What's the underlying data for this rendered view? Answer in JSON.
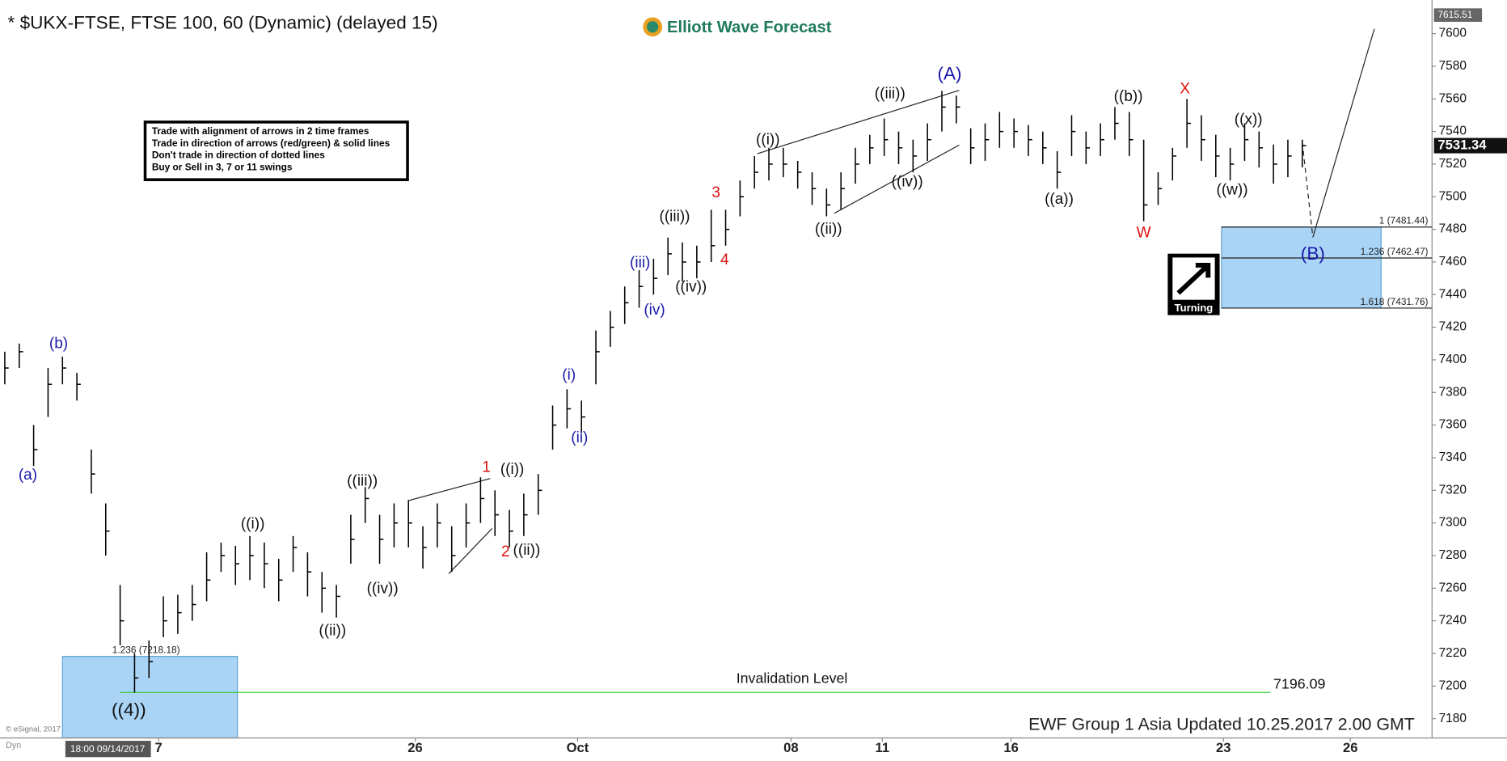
{
  "chart_data": {
    "type": "ohlc",
    "title": "* $UKX-FTSE, FTSE 100, 60 (Dynamic) (delayed 15)",
    "brand": "Elliott Wave Forecast",
    "rules_box": [
      "Trade with alignment of arrows in 2 time frames",
      "Trade in direction of arrows (red/green) & solid lines",
      "Don't trade in direction of dotted lines",
      "Buy or Sell in 3, 7 or 11 swings"
    ],
    "footer": "EWF Group 1 Asia Updated 10.25.2017 2.00 GMT",
    "copyright": "© eSignal, 2017",
    "mode_label": "Dyn",
    "time_label": "18:00 09/14/2017",
    "badge": "Turning",
    "color": "#000000",
    "xlim": [
      0,
      1490
    ],
    "ylim": [
      7168.2,
      7615.51
    ],
    "yticks": [
      7180,
      7200,
      7220,
      7240,
      7260,
      7280,
      7300,
      7320,
      7340,
      7360,
      7380,
      7400,
      7420,
      7440,
      7460,
      7480,
      7500,
      7520,
      7540,
      7560,
      7580,
      7600
    ],
    "xticks": [
      {
        "value": 165,
        "label": "7"
      },
      {
        "value": 432,
        "label": "26"
      },
      {
        "value": 601,
        "label": "Oct"
      },
      {
        "value": 823,
        "label": "08"
      },
      {
        "value": 918,
        "label": "11"
      },
      {
        "value": 1052,
        "label": "16"
      },
      {
        "value": 1273,
        "label": "23"
      },
      {
        "value": 1405,
        "label": "26"
      }
    ],
    "x": [
      5,
      20,
      35,
      50,
      65,
      80,
      95,
      110,
      125,
      140,
      155,
      170,
      185,
      200,
      215,
      230,
      245,
      260,
      275,
      290,
      305,
      320,
      335,
      350,
      365,
      380,
      395,
      410,
      425,
      440,
      455,
      470,
      485,
      500,
      515,
      530,
      545,
      560,
      575,
      590,
      605,
      620,
      635,
      650,
      665,
      680,
      695,
      710,
      725,
      740,
      755,
      770,
      785,
      800,
      815,
      830,
      845,
      860,
      875,
      890,
      905,
      920,
      935,
      950,
      965,
      980,
      995,
      1010,
      1025,
      1040,
      1055,
      1070,
      1085,
      1100,
      1115,
      1130,
      1145,
      1160,
      1175,
      1190,
      1205,
      1220,
      1235,
      1250,
      1265,
      1280,
      1295,
      1310,
      1325,
      1340,
      1355
    ],
    "high": [
      7405,
      7410,
      7360,
      7395,
      7402,
      7392,
      7345,
      7312,
      7262,
      7220,
      7228,
      7255,
      7256,
      7262,
      7282,
      7288,
      7286,
      7292,
      7288,
      7278,
      7292,
      7282,
      7270,
      7262,
      7305,
      7322,
      7305,
      7312,
      7314,
      7298,
      7312,
      7298,
      7312,
      7328,
      7320,
      7308,
      7318,
      7330,
      7372,
      7382,
      7375,
      7418,
      7430,
      7445,
      7455,
      7462,
      7475,
      7472,
      7470,
      7492,
      7492,
      7510,
      7525,
      7530,
      7530,
      7522,
      7515,
      7505,
      7515,
      7530,
      7538,
      7548,
      7540,
      7535,
      7545,
      7565,
      7562,
      7542,
      7545,
      7552,
      7548,
      7544,
      7540,
      7528,
      7550,
      7540,
      7545,
      7555,
      7552,
      7535,
      7515,
      7530,
      7560,
      7550,
      7538,
      7530,
      7545,
      7540,
      7532,
      7535,
      7535
    ],
    "low": [
      7385,
      7395,
      7335,
      7365,
      7385,
      7375,
      7318,
      7280,
      7225,
      7196,
      7205,
      7230,
      7232,
      7240,
      7252,
      7270,
      7262,
      7265,
      7260,
      7252,
      7270,
      7255,
      7245,
      7242,
      7275,
      7300,
      7275,
      7285,
      7285,
      7272,
      7285,
      7270,
      7285,
      7300,
      7292,
      7285,
      7292,
      7305,
      7345,
      7358,
      7355,
      7385,
      7408,
      7422,
      7432,
      7440,
      7452,
      7448,
      7450,
      7460,
      7470,
      7488,
      7505,
      7510,
      7512,
      7505,
      7495,
      7488,
      7492,
      7508,
      7520,
      7525,
      7520,
      7515,
      7522,
      7540,
      7545,
      7520,
      7522,
      7530,
      7530,
      7525,
      7520,
      7505,
      7525,
      7520,
      7525,
      7535,
      7525,
      7485,
      7495,
      7510,
      7530,
      7522,
      7512,
      7510,
      7522,
      7518,
      7508,
      7512,
      7518
    ],
    "close": [
      7395,
      7405,
      7345,
      7385,
      7395,
      7385,
      7330,
      7295,
      7240,
      7205,
      7215,
      7240,
      7245,
      7250,
      7265,
      7280,
      7275,
      7280,
      7275,
      7265,
      7285,
      7270,
      7260,
      7255,
      7290,
      7315,
      7290,
      7300,
      7300,
      7285,
      7300,
      7280,
      7300,
      7315,
      7305,
      7295,
      7305,
      7320,
      7360,
      7370,
      7365,
      7405,
      7420,
      7435,
      7445,
      7450,
      7465,
      7460,
      7460,
      7470,
      7480,
      7500,
      7515,
      7520,
      7520,
      7515,
      7505,
      7495,
      7505,
      7520,
      7530,
      7535,
      7530,
      7525,
      7535,
      7555,
      7555,
      7530,
      7535,
      7540,
      7540,
      7535,
      7530,
      7515,
      7540,
      7530,
      7535,
      7545,
      7535,
      7495,
      7505,
      7525,
      7545,
      7535,
      7525,
      7520,
      7535,
      7530,
      7520,
      7525,
      7531.34
    ],
    "invalidation": {
      "label": "Invalidation Level",
      "value": 7196.09,
      "color": "#33cc33"
    },
    "extension_level": {
      "value": 7218.18,
      "label": "1.236 (7218.18)"
    },
    "fib_levels": [
      {
        "value": 7481.44,
        "label": "1 (7481.44)"
      },
      {
        "value": 7462.47,
        "label": "1.236 (7462.47)"
      },
      {
        "value": 7431.76,
        "label": "1.618 (7431.76)"
      }
    ],
    "zone_color": "#aad4f5",
    "annotations": [
      {
        "text": "(a)",
        "color": "#1a1aaa"
      },
      {
        "text": "(b)",
        "color": "#1a1aaa"
      },
      {
        "text": "((4))",
        "color": "#111111"
      },
      {
        "text": "((i))",
        "color": "#111111"
      },
      {
        "text": "((ii))",
        "color": "#111111"
      },
      {
        "text": "((iii))",
        "color": "#111111"
      },
      {
        "text": "((iv))",
        "color": "#111111"
      },
      {
        "text": "1",
        "color": "#dd1111"
      },
      {
        "text": "((i))",
        "color": "#111111"
      },
      {
        "text": "2",
        "color": "#dd1111"
      },
      {
        "text": "((ii))",
        "color": "#111111"
      },
      {
        "text": "(i)",
        "color": "#1a1aaa"
      },
      {
        "text": "(ii)",
        "color": "#1a1aaa"
      },
      {
        "text": "(iii)",
        "color": "#1a1aaa"
      },
      {
        "text": "(iv)",
        "color": "#1a1aaa"
      },
      {
        "text": "((iii))",
        "color": "#111111"
      },
      {
        "text": "((iv))",
        "color": "#111111"
      },
      {
        "text": "3",
        "color": "#dd1111"
      },
      {
        "text": "4",
        "color": "#dd1111"
      },
      {
        "text": "((i))",
        "color": "#111111"
      },
      {
        "text": "((ii))",
        "color": "#111111"
      },
      {
        "text": "((iii))",
        "color": "#111111"
      },
      {
        "text": "((iv))",
        "color": "#111111"
      },
      {
        "text": "(A)",
        "color": "#1a1aaa"
      },
      {
        "text": "((a))",
        "color": "#111111"
      },
      {
        "text": "((b))",
        "color": "#111111"
      },
      {
        "text": "W",
        "color": "#dd1111"
      },
      {
        "text": "X",
        "color": "#dd1111"
      },
      {
        "text": "((w))",
        "color": "#111111"
      },
      {
        "text": "((x))",
        "color": "#111111"
      },
      {
        "text": "(B)",
        "color": "#1a1aaa"
      }
    ]
  }
}
